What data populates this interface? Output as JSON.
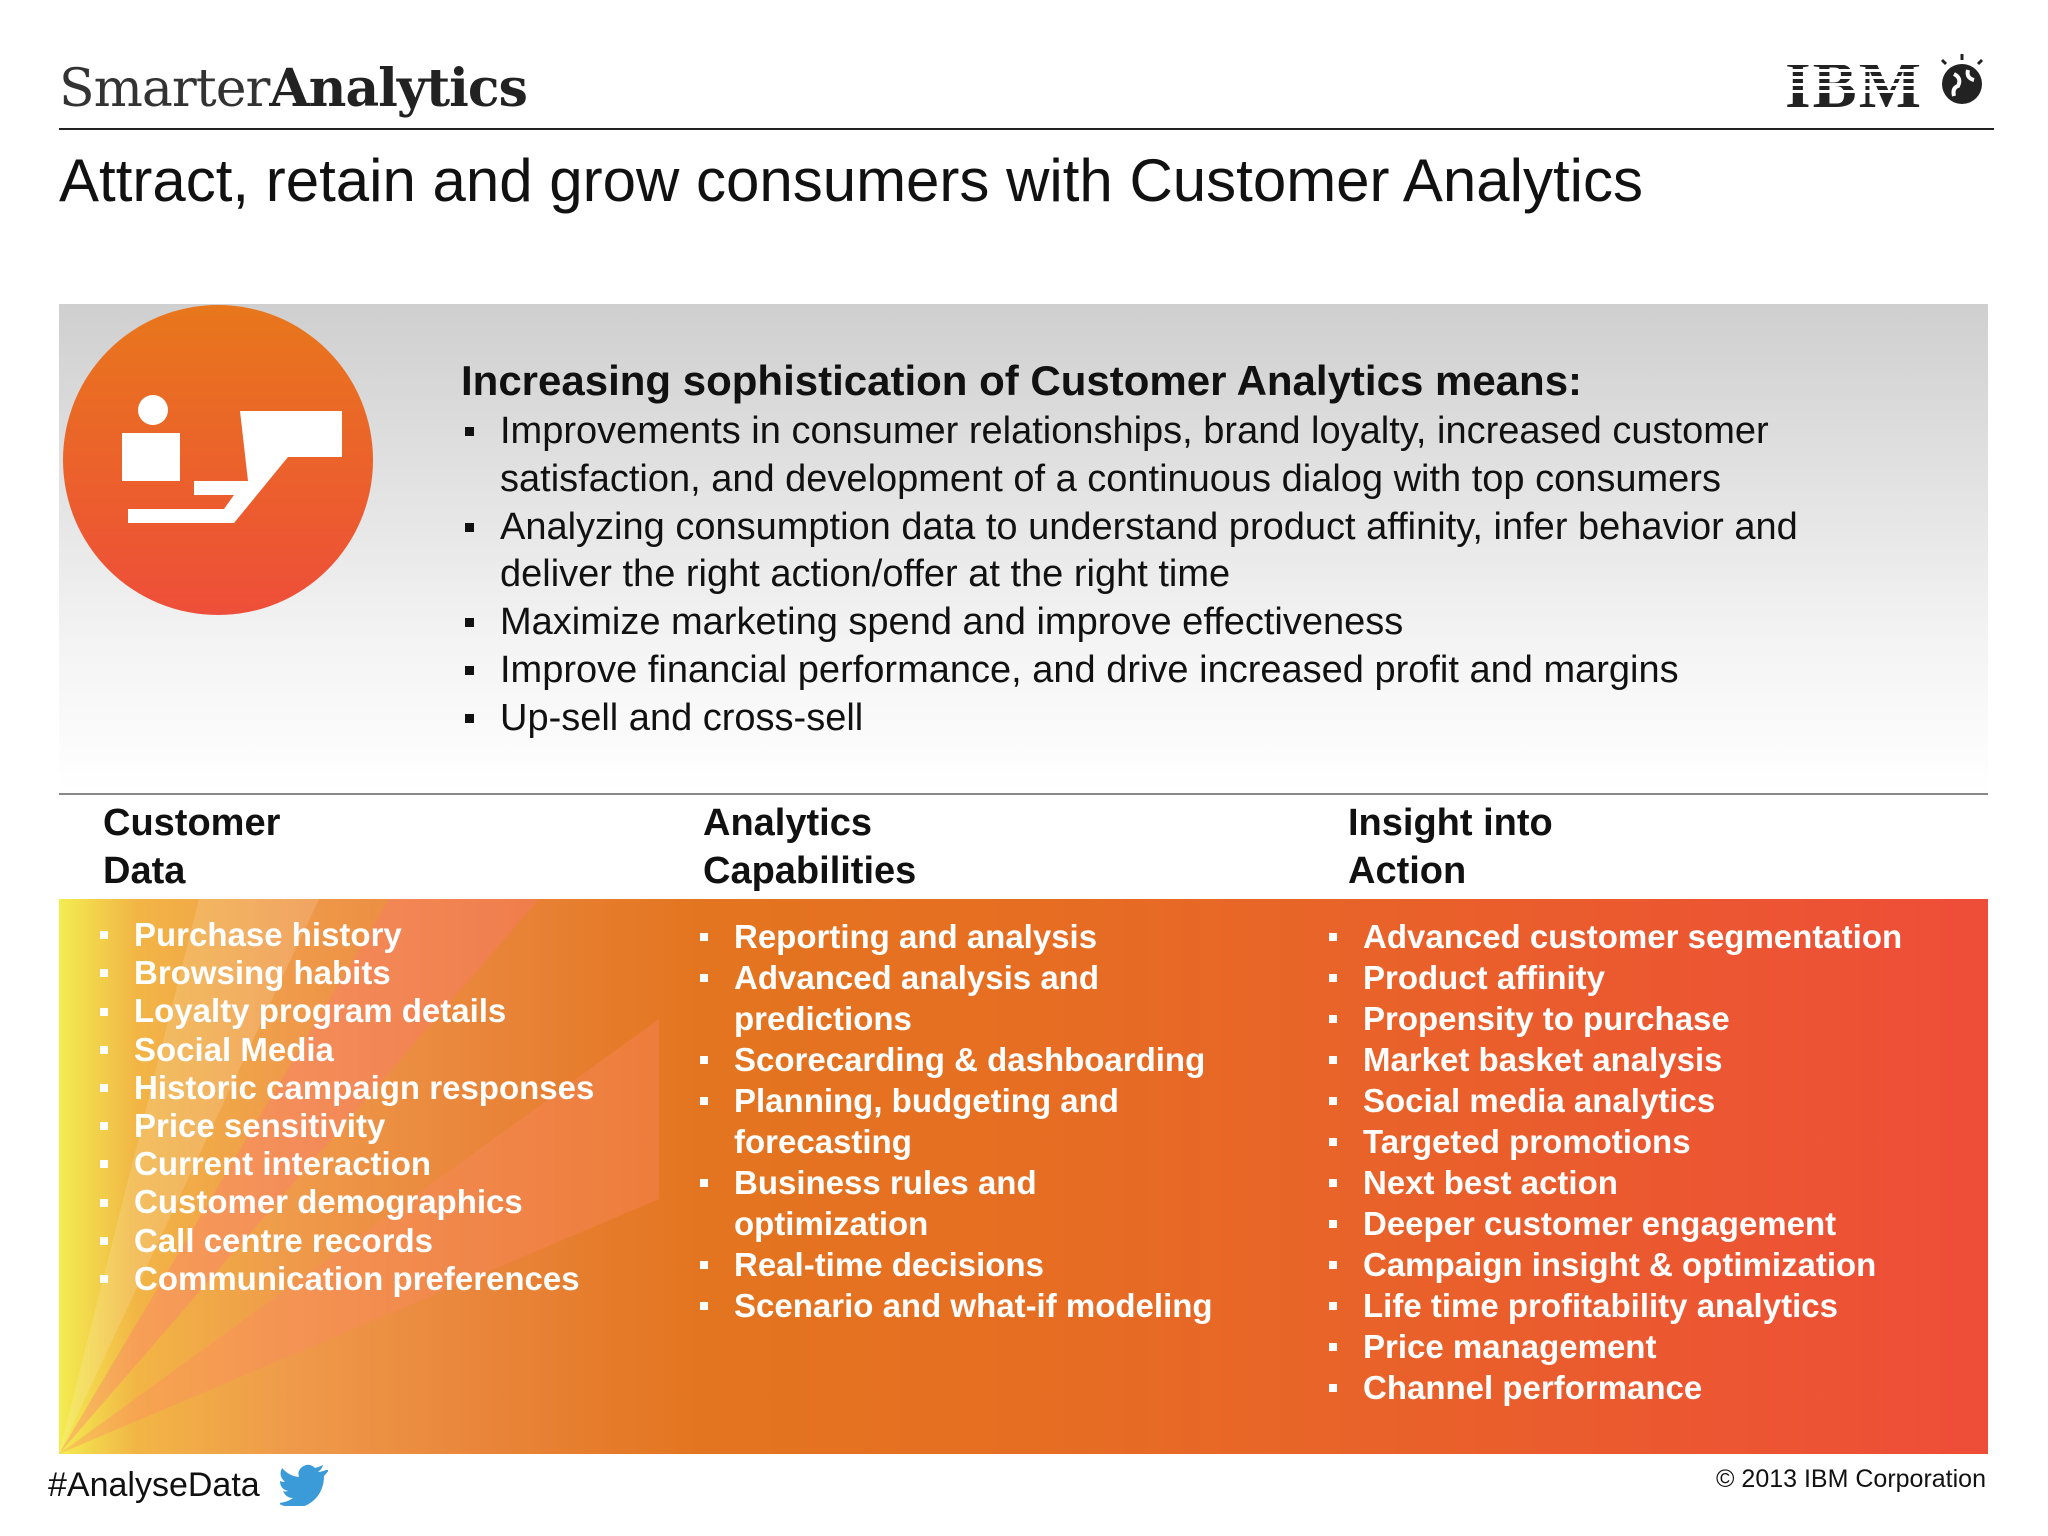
{
  "header": {
    "logo_light": "Smarter",
    "logo_bold": "Analytics",
    "ibm": "IBM",
    "title": "Attract, retain and grow consumers with Customer Analytics"
  },
  "intro": {
    "heading": "Increasing sophistication of Customer Analytics means:",
    "bullets": [
      [
        "Improvements in consumer relationships, brand loyalty, increased customer",
        "satisfaction, and development of a continuous dialog with top consumers"
      ],
      [
        "Analyzing consumption data to understand product affinity, infer behavior and",
        "deliver the right action/offer at the right time"
      ],
      [
        "Maximize marketing spend and improve effectiveness"
      ],
      [
        "Improve financial performance, and drive increased profit and margins"
      ],
      [
        "Up-sell and cross-sell"
      ]
    ]
  },
  "columns": [
    {
      "heading": [
        "Customer",
        "Data"
      ],
      "items": [
        [
          "Purchase history"
        ],
        [
          "Browsing habits"
        ],
        [
          "Loyalty program details"
        ],
        [
          "Social Media"
        ],
        [
          "Historic campaign responses"
        ],
        [
          "Price sensitivity"
        ],
        [
          "Current interaction"
        ],
        [
          "Customer demographics"
        ],
        [
          "Call centre records"
        ],
        [
          "Communication preferences"
        ]
      ]
    },
    {
      "heading": [
        "Analytics",
        "Capabilities"
      ],
      "items": [
        [
          "Reporting and analysis"
        ],
        [
          "Advanced analysis and",
          "predictions"
        ],
        [
          "Scorecarding & dashboarding"
        ],
        [
          "Planning, budgeting and",
          "forecasting"
        ],
        [
          "Business rules and",
          "optimization"
        ],
        [
          "Real-time decisions"
        ],
        [
          "Scenario and what-if modeling"
        ]
      ]
    },
    {
      "heading": [
        "Insight into",
        "Action"
      ],
      "items": [
        [
          "Advanced customer segmentation"
        ],
        [
          "Product affinity"
        ],
        [
          "Propensity to purchase"
        ],
        [
          "Market basket analysis"
        ],
        [
          "Social media analytics"
        ],
        [
          "Targeted promotions"
        ],
        [
          "Next best action"
        ],
        [
          "Deeper customer engagement"
        ],
        [
          "Campaign insight & optimization"
        ],
        [
          "Life time profitability analytics"
        ],
        [
          "Price management"
        ],
        [
          "Channel performance"
        ]
      ]
    }
  ],
  "footer": {
    "hashtag": "#AnalyseData",
    "copyright": "© 2013 IBM Corporation"
  }
}
